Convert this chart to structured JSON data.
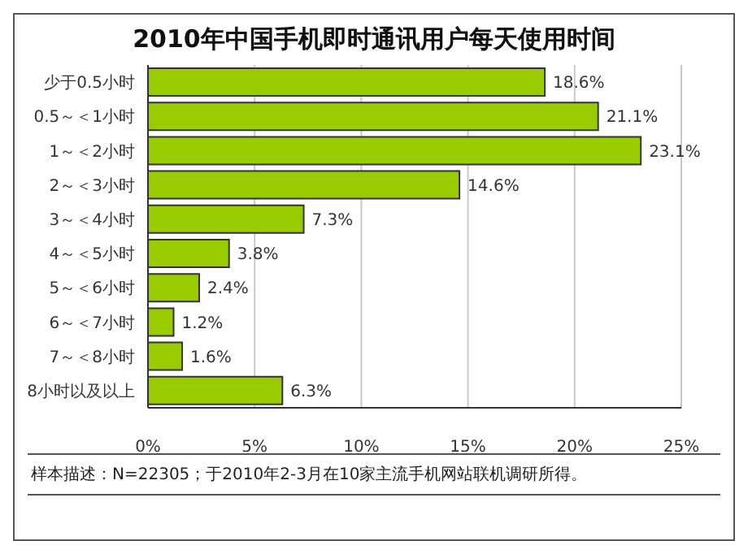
{
  "chart_data": {
    "type": "bar",
    "orientation": "horizontal",
    "title": "2010年中国手机即时通讯用户每天使用时间",
    "categories": [
      "少于0.5小时",
      "0.5～＜1小时",
      "1～＜2小时",
      "2～＜3小时",
      "3～＜4小时",
      "4～＜5小时",
      "5～＜6小时",
      "6～＜7小时",
      "7～＜8小时",
      "8小时以及以上"
    ],
    "values": [
      18.6,
      21.1,
      23.1,
      14.6,
      7.3,
      3.8,
      2.4,
      1.2,
      1.6,
      6.3
    ],
    "value_labels": [
      "18.6%",
      "21.1%",
      "23.1%",
      "14.6%",
      "7.3%",
      "3.8%",
      "2.4%",
      "1.2%",
      "1.6%",
      "6.3%"
    ],
    "color": "#99cc00",
    "xlim": [
      0,
      25
    ],
    "xticks": [
      {
        "value": 0,
        "label": "0%"
      },
      {
        "value": 5,
        "label": "5%"
      },
      {
        "value": 10,
        "label": "10%"
      },
      {
        "value": 15,
        "label": "15%"
      },
      {
        "value": 20,
        "label": "20%"
      },
      {
        "value": 25,
        "label": "25%"
      }
    ],
    "grid": "x",
    "legend": false,
    "annotations": [
      "样本描述：N=22305；于2010年2-3月在10家主流手机网站联机调研所得。"
    ]
  }
}
